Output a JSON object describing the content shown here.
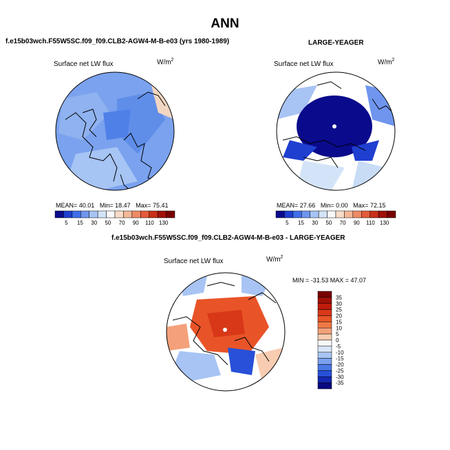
{
  "page": {
    "title": "ANN",
    "left_header": "f.e15b03wch.F55W5SC.f09_f09.CLB2-AGW4-M-B-e03 (yrs 1980-1989)",
    "right_header": "LARGE-YEAGER",
    "diff_header": "f.e15b03wch.F55W5SC.f09_f09.CLB2-AGW4-M-B-e03 - LARGE-YEAGER"
  },
  "chart_data": [
    {
      "type": "heatmap",
      "projection": "north-polar-stereographic",
      "title": "Surface net LW flux",
      "units_base": "W/m",
      "units_exp": "2",
      "stats": {
        "mean_label": "MEAN=",
        "mean": "40.01",
        "min_label": "Min=",
        "min": "18.47",
        "max_label": "Max=",
        "max": "75.41"
      },
      "colorbar": {
        "orientation": "horizontal",
        "levels": [
          "5",
          "15",
          "30",
          "50",
          "70",
          "90",
          "110",
          "130"
        ],
        "colors": [
          "#0a0a8c",
          "#1f3fd0",
          "#3f6ee8",
          "#6f95ee",
          "#a6c4f4",
          "#d4e4f8",
          "#f8f8f8",
          "#f8dcc8",
          "#f4b898",
          "#ee8a64",
          "#e45a3a",
          "#c83018",
          "#a01008",
          "#780000"
        ]
      }
    },
    {
      "type": "heatmap",
      "projection": "north-polar-stereographic",
      "title": "Surface net LW flux",
      "units_base": "W/m",
      "units_exp": "2",
      "stats": {
        "mean_label": "MEAN=",
        "mean": "27.66",
        "min_label": "Min=",
        "min": "0.00",
        "max_label": "Max=",
        "max": "72.15"
      },
      "colorbar": {
        "orientation": "horizontal",
        "levels": [
          "5",
          "15",
          "30",
          "50",
          "70",
          "90",
          "110",
          "130"
        ],
        "colors": [
          "#0a0a8c",
          "#1f3fd0",
          "#3f6ee8",
          "#6f95ee",
          "#a6c4f4",
          "#d4e4f8",
          "#f8f8f8",
          "#f8dcc8",
          "#f4b898",
          "#ee8a64",
          "#e45a3a",
          "#c83018",
          "#a01008",
          "#780000"
        ]
      }
    },
    {
      "type": "heatmap",
      "projection": "north-polar-stereographic",
      "title": "Surface net LW flux",
      "units_base": "W/m",
      "units_exp": "2",
      "stats_text": "MIN = -31.53 MAX =  47.07",
      "colorbar": {
        "orientation": "vertical",
        "levels": [
          "35",
          "30",
          "25",
          "20",
          "15",
          "10",
          "5",
          "0",
          "-5",
          "-10",
          "-15",
          "-20",
          "-25",
          "-30",
          "-35"
        ],
        "colors": [
          "#780000",
          "#a01008",
          "#c01c0c",
          "#d83818",
          "#e85428",
          "#f07844",
          "#f4a07a",
          "#f8ccb0",
          "#f8f8f8",
          "#d8e6f8",
          "#a8c4f4",
          "#7aa0ee",
          "#4a78e6",
          "#2850d8",
          "#1428b0",
          "#0a0a80"
        ]
      }
    }
  ]
}
